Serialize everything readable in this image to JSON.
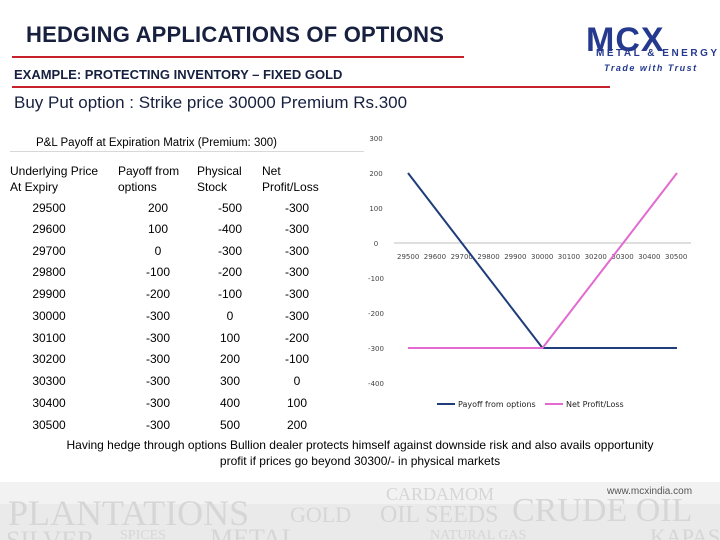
{
  "header": {
    "title": "HEDGING APPLICATIONS OF OPTIONS",
    "subtitle": "EXAMPLE: PROTECTING INVENTORY – FIXED GOLD",
    "heading": "Buy Put option : Strike price 30000 Premium Rs.300"
  },
  "logo": {
    "name": "MCX",
    "line1": "METAL & ENERGY",
    "line2": "Trade with Trust"
  },
  "table": {
    "title": "P&L Payoff at Expiration Matrix (Premium: 300)",
    "columns": [
      {
        "line1": "Underlying Price",
        "line2": "At Expiry"
      },
      {
        "line1": "Payoff from",
        "line2": "options"
      },
      {
        "line1": "Physical",
        "line2": "Stock"
      },
      {
        "line1": "Net",
        "line2": "Profit/Loss"
      }
    ],
    "rows": [
      [
        "29500",
        "200",
        "-500",
        "-300"
      ],
      [
        "29600",
        "100",
        "-400",
        "-300"
      ],
      [
        "29700",
        "0",
        "-300",
        "-300"
      ],
      [
        "29800",
        "-100",
        "-200",
        "-300"
      ],
      [
        "29900",
        "-200",
        "-100",
        "-300"
      ],
      [
        "30000",
        "-300",
        "0",
        "-300"
      ],
      [
        "30100",
        "-300",
        "100",
        "-200"
      ],
      [
        "30200",
        "-300",
        "200",
        "-100"
      ],
      [
        "30300",
        "-300",
        "300",
        "0"
      ],
      [
        "30400",
        "-300",
        "400",
        "100"
      ],
      [
        "30500",
        "-300",
        "500",
        "200"
      ]
    ]
  },
  "chart_data": {
    "type": "line",
    "title": "",
    "xlabel": "",
    "ylabel": "",
    "categories": [
      "29500",
      "29600",
      "29700",
      "29800",
      "29900",
      "30000",
      "30100",
      "30200",
      "30300",
      "30400",
      "30500"
    ],
    "y_ticks": [
      "300",
      "200",
      "100",
      "0",
      "-100",
      "-200",
      "-300",
      "-400"
    ],
    "ylim": [
      -400,
      300
    ],
    "series": [
      {
        "name": "Payoff from options",
        "color": "#1f3d7a",
        "values": [
          200,
          100,
          0,
          -100,
          -200,
          -300,
          -300,
          -300,
          -300,
          -300,
          -300
        ]
      },
      {
        "name": "Net Profit/Loss",
        "color": "#e36ad0",
        "values": [
          -300,
          -300,
          -300,
          -300,
          -300,
          -300,
          -200,
          -100,
          0,
          100,
          200
        ]
      }
    ],
    "legend": "bottom"
  },
  "caption": {
    "line1": "Having hedge through options Bullion dealer protects himself against downside risk and also avails opportunity",
    "line2": "profit if prices go beyond 30300/- in physical markets"
  },
  "footer": {
    "website": "www.mcxindia.com",
    "words": [
      "PLANTATIONS",
      "GOLD",
      "CARDAMOM",
      "OIL SEEDS",
      "CRUDE OIL",
      "SILVER",
      "SPICES",
      "METAL",
      "NATURAL GAS",
      "KAPAS"
    ]
  }
}
